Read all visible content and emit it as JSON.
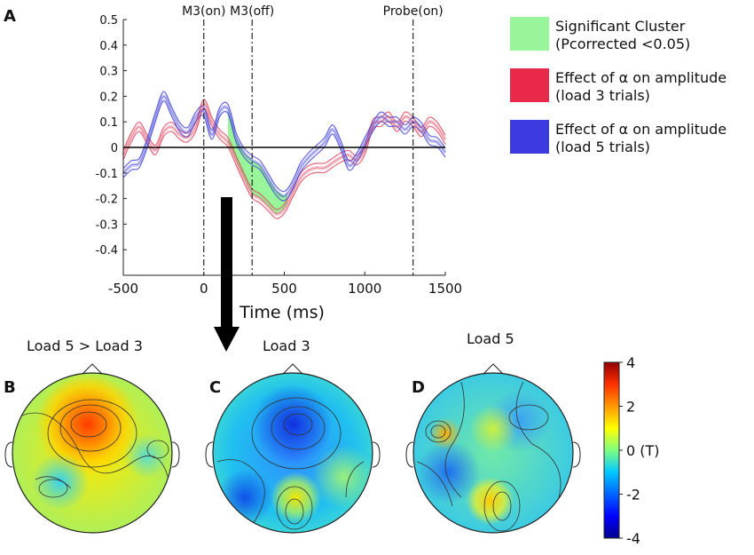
{
  "panel_labels": {
    "a": "A",
    "b": "B",
    "c": "C",
    "d": "D"
  },
  "chart_data": [
    {
      "type": "line",
      "panel": "A",
      "xlabel": "Time (ms)",
      "ylabel": "",
      "xlim": [
        -500,
        1500
      ],
      "ylim": [
        -0.5,
        0.5
      ],
      "xticks": [
        -500,
        0,
        500,
        1000,
        1500
      ],
      "yticks": [
        "0.5",
        "0.4",
        "0.3",
        "0.2",
        "0.1",
        "0",
        "-0.1",
        "-0.2",
        "-0.3",
        "-0.4"
      ],
      "ytick_values": [
        0.5,
        0.4,
        0.3,
        0.2,
        0.1,
        0,
        -0.1,
        -0.2,
        -0.3,
        -0.4
      ],
      "events": [
        {
          "label": "M3(on)",
          "x": 0
        },
        {
          "label": "M3(off)",
          "x": 300
        },
        {
          "label": "Probe(on)",
          "x": 1300
        }
      ],
      "legend": [
        {
          "label_line1": "Significant Cluster",
          "label_line2": "(Pcorrected <0.05)",
          "color": "#99f599"
        },
        {
          "label_line1": "Effect of α on amplitude",
          "label_line2": "(load 3 trials)",
          "color": "#e8294a"
        },
        {
          "label_line1": "Effect of α on amplitude",
          "label_line2": "(load 5 trials)",
          "color": "#3b3be0"
        }
      ],
      "cluster_range": [
        150,
        520
      ],
      "series": [
        {
          "name": "load 3 trials",
          "color": "#e0425c",
          "x": [
            -500,
            -450,
            -400,
            -350,
            -300,
            -250,
            -200,
            -150,
            -100,
            -50,
            0,
            50,
            100,
            150,
            200,
            250,
            300,
            350,
            400,
            450,
            500,
            550,
            600,
            650,
            700,
            750,
            800,
            850,
            900,
            950,
            1000,
            1050,
            1100,
            1150,
            1200,
            1250,
            1300,
            1350,
            1400,
            1450,
            1500
          ],
          "y": [
            -0.03,
            0.04,
            0.08,
            0.03,
            -0.01,
            0.06,
            0.08,
            0.05,
            0.04,
            0.08,
            0.17,
            0.1,
            0.05,
            0.02,
            -0.05,
            -0.12,
            -0.18,
            -0.2,
            -0.23,
            -0.26,
            -0.24,
            -0.18,
            -0.12,
            -0.09,
            -0.08,
            -0.08,
            -0.06,
            -0.04,
            -0.03,
            -0.05,
            -0.01,
            0.09,
            0.1,
            0.12,
            0.08,
            0.12,
            0.1,
            0.06,
            0.1,
            0.08,
            0.03
          ]
        },
        {
          "name": "load 5 trials",
          "color": "#4040d8",
          "x": [
            -500,
            -450,
            -400,
            -350,
            -300,
            -250,
            -200,
            -150,
            -100,
            -50,
            0,
            50,
            100,
            150,
            200,
            250,
            300,
            350,
            400,
            450,
            500,
            550,
            600,
            650,
            700,
            750,
            800,
            850,
            900,
            950,
            1000,
            1050,
            1100,
            1150,
            1200,
            1250,
            1300,
            1350,
            1400,
            1450,
            1500
          ],
          "y": [
            -0.1,
            -0.07,
            -0.06,
            0.02,
            0.12,
            0.2,
            0.14,
            0.08,
            0.06,
            0.12,
            0.14,
            0.05,
            0.14,
            0.15,
            0.04,
            -0.02,
            -0.05,
            -0.07,
            -0.12,
            -0.17,
            -0.19,
            -0.15,
            -0.08,
            -0.04,
            -0.01,
            0.02,
            0.07,
            0.01,
            -0.07,
            -0.04,
            0.02,
            0.08,
            0.12,
            0.1,
            0.1,
            0.07,
            0.1,
            0.08,
            0.03,
            0.02,
            -0.02
          ]
        }
      ],
      "arrow": "down"
    },
    {
      "type": "heatmap",
      "panel": "B",
      "title": "Load 5 > Load 3",
      "description_values": {
        "peak": 2.5
      }
    },
    {
      "type": "heatmap",
      "panel": "C",
      "title": "Load 3",
      "description_values": {
        "min": -3
      }
    },
    {
      "type": "heatmap",
      "panel": "D",
      "title": "Load 5",
      "description_values": {
        "min": -2
      }
    },
    {
      "type": "colorbar",
      "ticks": [
        "4",
        "2",
        "0 (T)",
        "-2",
        "-4"
      ],
      "tick_values": [
        4,
        2,
        0,
        -2,
        -4
      ],
      "range": [
        -4,
        4
      ]
    }
  ]
}
